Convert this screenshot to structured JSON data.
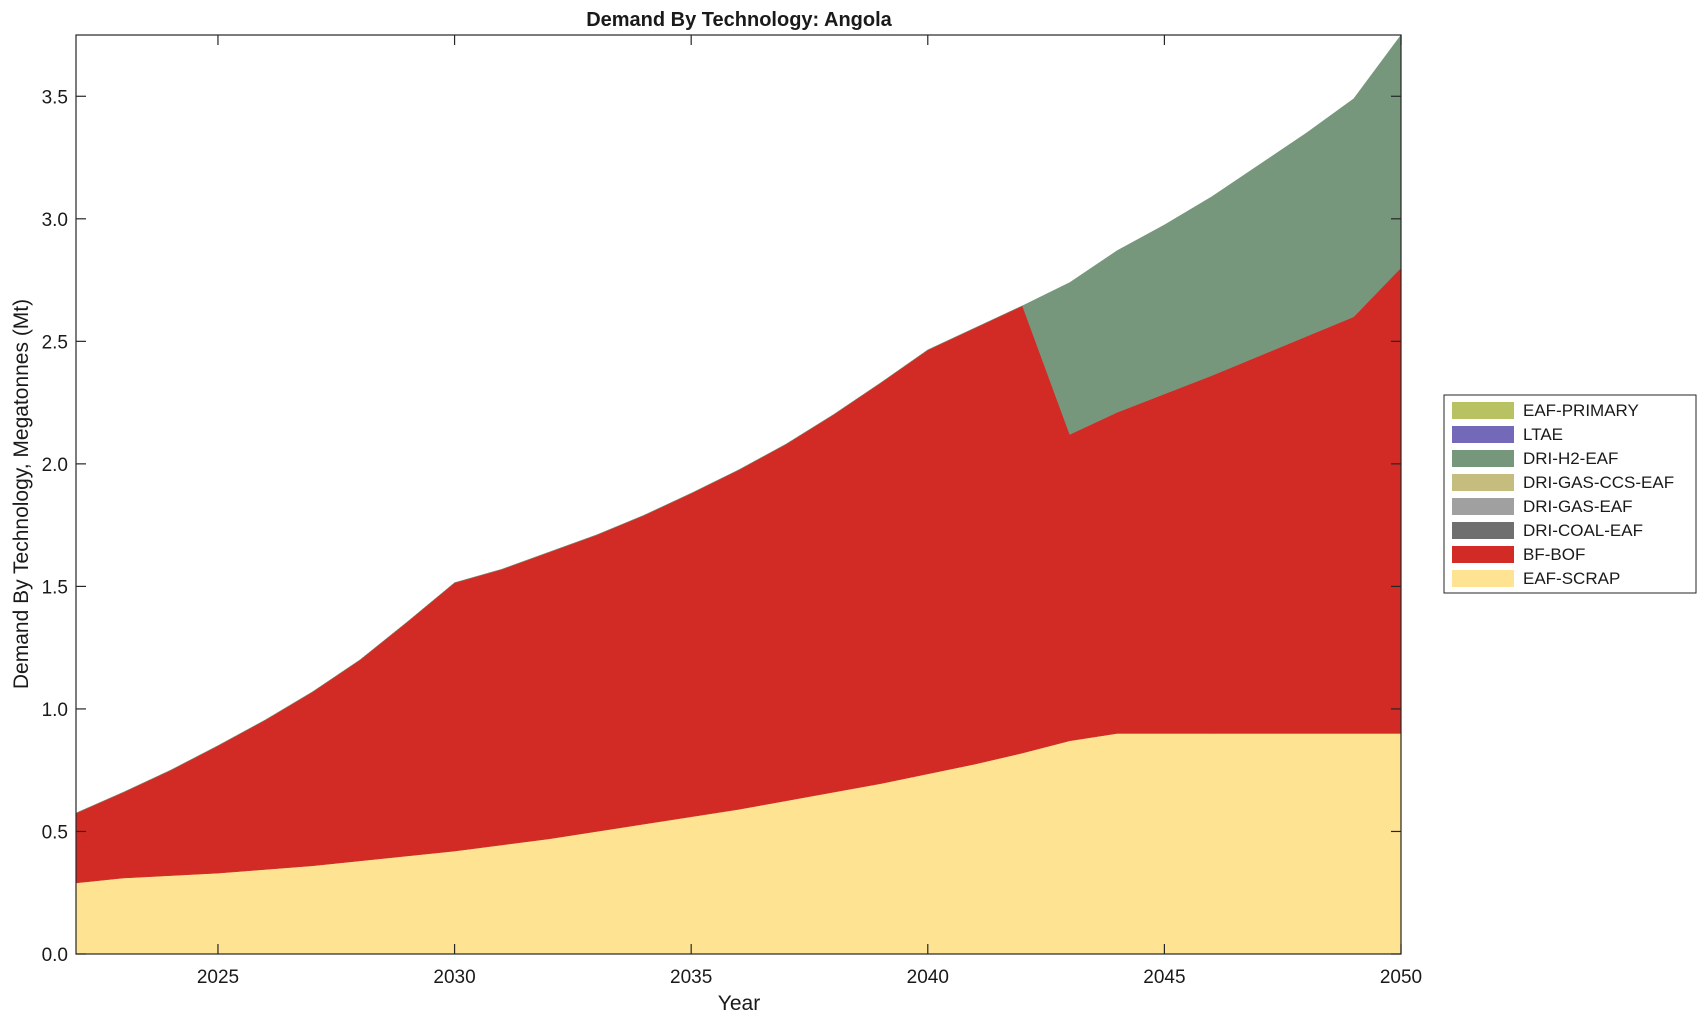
{
  "chart_data": {
    "type": "area",
    "title": "Demand By Technology: Angola",
    "xlabel": "Year",
    "ylabel": "Demand By Technology, Megatonnes (Mt)",
    "xlim": [
      2022,
      2050
    ],
    "ylim": [
      0,
      3.75
    ],
    "xticks": [
      2025,
      2030,
      2035,
      2040,
      2045,
      2050
    ],
    "xtick_labels": [
      "2025",
      "2030",
      "2035",
      "2040",
      "2045",
      "2050"
    ],
    "yticks": [
      0,
      0.5,
      1,
      1.5,
      2,
      2.5,
      3,
      3.5
    ],
    "ytick_labels": [
      "0.0",
      "0.5",
      "1.0",
      "1.5",
      "2.0",
      "2.5",
      "3.0",
      "3.5"
    ],
    "grid": false,
    "legend_position": "right",
    "x": [
      2022,
      2023,
      2024,
      2025,
      2026,
      2027,
      2028,
      2029,
      2030,
      2031,
      2032,
      2033,
      2034,
      2035,
      2036,
      2037,
      2038,
      2039,
      2040,
      2041,
      2042,
      2043,
      2044,
      2045,
      2046,
      2047,
      2048,
      2049,
      2050
    ],
    "series": [
      {
        "name": "EAF-SCRAP",
        "color": "#fde392",
        "values": [
          0.29,
          0.31,
          0.32,
          0.33,
          0.345,
          0.36,
          0.38,
          0.4,
          0.42,
          0.445,
          0.47,
          0.5,
          0.53,
          0.56,
          0.59,
          0.625,
          0.66,
          0.695,
          0.735,
          0.775,
          0.82,
          0.87,
          0.9,
          0.9,
          0.9,
          0.9,
          0.9,
          0.9,
          0.9
        ]
      },
      {
        "name": "BF-BOF",
        "color": "#d22b25",
        "values": [
          0.285,
          0.35,
          0.43,
          0.52,
          0.61,
          0.71,
          0.82,
          0.955,
          1.095,
          1.125,
          1.17,
          1.21,
          1.26,
          1.32,
          1.385,
          1.455,
          1.54,
          1.635,
          1.73,
          1.78,
          1.825,
          1.25,
          1.31,
          1.385,
          1.46,
          1.54,
          1.62,
          1.7,
          1.9
        ]
      },
      {
        "name": "DRI-COAL-EAF",
        "color": "#6f6f6f",
        "values": [
          0,
          0,
          0,
          0,
          0,
          0,
          0,
          0,
          0,
          0,
          0,
          0,
          0,
          0,
          0,
          0,
          0,
          0,
          0,
          0,
          0,
          0,
          0,
          0,
          0,
          0,
          0,
          0,
          0
        ]
      },
      {
        "name": "DRI-GAS-EAF",
        "color": "#a0a0a0",
        "values": [
          0,
          0,
          0,
          0,
          0,
          0,
          0,
          0,
          0,
          0,
          0,
          0,
          0,
          0,
          0,
          0,
          0,
          0,
          0,
          0,
          0,
          0,
          0,
          0,
          0,
          0,
          0,
          0,
          0
        ]
      },
      {
        "name": "DRI-GAS-CCS-EAF",
        "color": "#c4bd7d",
        "values": [
          0,
          0,
          0,
          0,
          0,
          0,
          0,
          0,
          0,
          0,
          0,
          0,
          0,
          0,
          0,
          0,
          0,
          0,
          0,
          0,
          0,
          0,
          0,
          0,
          0,
          0,
          0,
          0,
          0
        ]
      },
      {
        "name": "DRI-H2-EAF",
        "color": "#76977c",
        "values": [
          0,
          0,
          0,
          0,
          0,
          0,
          0,
          0,
          0,
          0,
          0,
          0,
          0,
          0,
          0,
          0,
          0,
          0,
          0,
          0,
          0,
          0.62,
          0.66,
          0.69,
          0.73,
          0.78,
          0.83,
          0.89,
          0.95
        ]
      },
      {
        "name": "LTAE",
        "color": "#7468b9",
        "values": [
          0,
          0,
          0,
          0,
          0,
          0,
          0,
          0,
          0,
          0,
          0,
          0,
          0,
          0,
          0,
          0,
          0,
          0,
          0,
          0,
          0,
          0,
          0,
          0,
          0,
          0,
          0,
          0,
          0
        ]
      },
      {
        "name": "EAF-PRIMARY",
        "color": "#b9c263",
        "values": [
          0,
          0,
          0,
          0,
          0,
          0,
          0,
          0,
          0,
          0,
          0,
          0,
          0,
          0,
          0,
          0,
          0,
          0,
          0,
          0,
          0,
          0,
          0,
          0,
          0,
          0,
          0,
          0,
          0
        ]
      }
    ]
  }
}
